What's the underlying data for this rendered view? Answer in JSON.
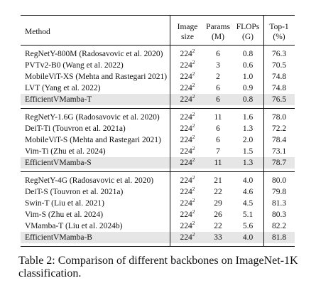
{
  "headers": {
    "method": "Method",
    "image_size": [
      "Image",
      "size"
    ],
    "params": [
      "Params",
      "(M)"
    ],
    "flops": [
      "FLOPs",
      "(G)"
    ],
    "top1": [
      "Top-1",
      "(%)"
    ]
  },
  "groups": [
    [
      {
        "method": "RegNetY-800M (Radosavovic et al. 2020)",
        "size": "224",
        "exp": "2",
        "params": "6",
        "flops": "0.8",
        "top1": "76.3",
        "hl": false
      },
      {
        "method": "PVTv2-B0 (Wang et al. 2022)",
        "size": "224",
        "exp": "2",
        "params": "3",
        "flops": "0.6",
        "top1": "70.5",
        "hl": false
      },
      {
        "method": "MobileViT-XS (Mehta and Rastegari 2021)",
        "size": "224",
        "exp": "2",
        "params": "2",
        "flops": "1.0",
        "top1": "74.8",
        "hl": false
      },
      {
        "method": "LVT (Yang et al. 2022)",
        "size": "224",
        "exp": "2",
        "params": "6",
        "flops": "0.9",
        "top1": "74.8",
        "hl": false
      },
      {
        "method": "EfficientVMamba-T",
        "size": "224",
        "exp": "2",
        "params": "6",
        "flops": "0.8",
        "top1": "76.5",
        "hl": true
      }
    ],
    [
      {
        "method": "RegNetY-1.6G (Radosavovic et al. 2020)",
        "size": "224",
        "exp": "2",
        "params": "11",
        "flops": "1.6",
        "top1": "78.0",
        "hl": false
      },
      {
        "method": "DeiT-Ti (Touvron et al. 2021a)",
        "size": "224",
        "exp": "2",
        "params": "6",
        "flops": "1.3",
        "top1": "72.2",
        "hl": false
      },
      {
        "method": "MobileViT-S (Mehta and Rastegari 2021)",
        "size": "224",
        "exp": "2",
        "params": "6",
        "flops": "2.0",
        "top1": "78.4",
        "hl": false
      },
      {
        "method": "Vim-Ti (Zhu et al. 2024)",
        "size": "224",
        "exp": "2",
        "params": "7",
        "flops": "1.5",
        "top1": "73.1",
        "hl": false
      },
      {
        "method": "EfficientVMamba-S",
        "size": "224",
        "exp": "2",
        "params": "11",
        "flops": "1.3",
        "top1": "78.7",
        "hl": true
      }
    ],
    [
      {
        "method": "RegNetY-4G (Radosavovic et al. 2020)",
        "size": "224",
        "exp": "2",
        "params": "21",
        "flops": "4.0",
        "top1": "80.0",
        "hl": false
      },
      {
        "method": "DeiT-S (Touvron et al. 2021a)",
        "size": "224",
        "exp": "2",
        "params": "22",
        "flops": "4.6",
        "top1": "79.8",
        "hl": false
      },
      {
        "method": "Swin-T (Liu et al. 2021)",
        "size": "224",
        "exp": "2",
        "params": "29",
        "flops": "4.5",
        "top1": "81.3",
        "hl": false
      },
      {
        "method": "Vim-S (Zhu et al. 2024)",
        "size": "224",
        "exp": "2",
        "params": "26",
        "flops": "5.1",
        "top1": "80.3",
        "hl": false
      },
      {
        "method": "VMamba-T (Liu et al. 2024b)",
        "size": "224",
        "exp": "2",
        "params": "22",
        "flops": "5.6",
        "top1": "82.2",
        "hl": false
      },
      {
        "method": "EfficientVMamba-B",
        "size": "224",
        "exp": "2",
        "params": "33",
        "flops": "4.0",
        "top1": "81.8",
        "hl": true
      }
    ]
  ],
  "caption": "Table 2: Comparison of different backbones on ImageNet-1K classification."
}
